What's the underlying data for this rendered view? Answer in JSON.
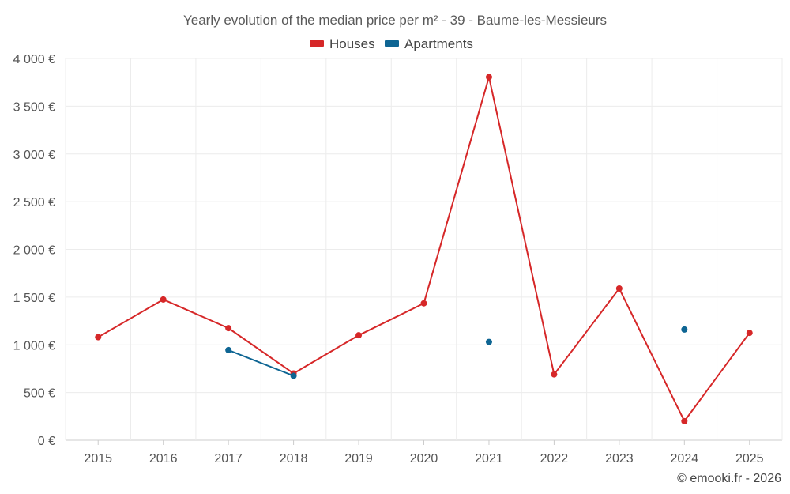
{
  "chart_data": {
    "type": "line",
    "title": "Yearly evolution of the median price per m² - 39 - Baume-les-Messieurs",
    "categories": [
      "2015",
      "2016",
      "2017",
      "2018",
      "2019",
      "2020",
      "2021",
      "2022",
      "2023",
      "2024",
      "2025"
    ],
    "ylim": [
      0,
      4000
    ],
    "yticks": [
      0,
      500,
      1000,
      1500,
      2000,
      2500,
      3000,
      3500,
      4000
    ],
    "ytick_labels": [
      "0 €",
      "500 €",
      "1 000 €",
      "1 500 €",
      "2 000 €",
      "2 500 €",
      "3 000 €",
      "3 500 €",
      "4 000 €"
    ],
    "grid": true,
    "legend_position": "top-center",
    "series": [
      {
        "name": "Houses",
        "color": "#d62728",
        "values": [
          1080,
          1475,
          1175,
          700,
          1100,
          1435,
          3805,
          690,
          1590,
          200,
          1125
        ]
      },
      {
        "name": "Apartments",
        "color": "#0e6593",
        "values": [
          null,
          null,
          945,
          675,
          null,
          null,
          1030,
          null,
          null,
          1160,
          null
        ]
      }
    ]
  },
  "credit": "© emooki.fr - 2026"
}
